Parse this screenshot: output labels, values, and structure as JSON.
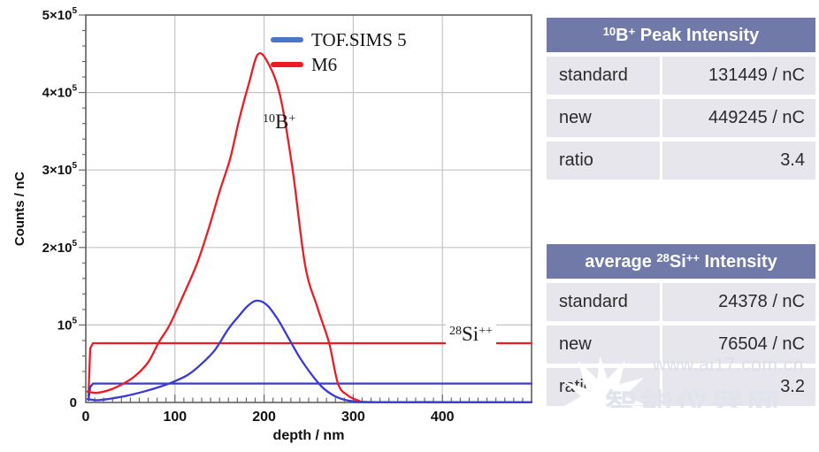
{
  "chart_data": {
    "type": "line",
    "title": "",
    "xlabel": "depth / nm",
    "ylabel": "Counts / nC",
    "xlim": [
      0,
      500
    ],
    "ylim": [
      0,
      500000
    ],
    "grid": true,
    "x_ticks": [
      0,
      100,
      200,
      300,
      400
    ],
    "x_minor_step": 10,
    "y_minor_step": 20000,
    "y_ticks": [
      {
        "value": 0,
        "base": "0",
        "exp": ""
      },
      {
        "value": 100000,
        "base": "10",
        "exp": "5"
      },
      {
        "value": 200000,
        "base": "2×10",
        "exp": "5"
      },
      {
        "value": 300000,
        "base": "3×10",
        "exp": "5"
      },
      {
        "value": 400000,
        "base": "4×10",
        "exp": "5"
      },
      {
        "value": 500000,
        "base": "5×10",
        "exp": "5"
      }
    ],
    "legend_position": "top-center-inside",
    "legend": [
      {
        "name": "TOF.SIMS 5",
        "color": "#4a76c8"
      },
      {
        "name": "M6",
        "color": "#ed1c24"
      }
    ],
    "annotations": [
      {
        "mass": "10",
        "element": "B",
        "charge": "+",
        "x_nm": 205,
        "y_counts": 355000
      },
      {
        "mass": "28",
        "element": "Si",
        "charge": "++",
        "x_nm": 408,
        "y_counts": 80000
      }
    ],
    "series": [
      {
        "name": "M6 28Si++ level",
        "color": "#ed1c24",
        "smooth": false,
        "points": [
          [
            3,
            8000
          ],
          [
            5,
            70000
          ],
          [
            8,
            76504
          ],
          [
            500,
            76504
          ]
        ]
      },
      {
        "name": "TOF.SIMS 5 28Si++ level",
        "color": "#3a3ad4",
        "smooth": false,
        "points": [
          [
            3,
            3000
          ],
          [
            5,
            20000
          ],
          [
            8,
            24378
          ],
          [
            500,
            24378
          ]
        ]
      },
      {
        "name": "M6 10B+ depth profile",
        "color": "#ed1c24",
        "smooth": true,
        "points": [
          [
            2,
            14000
          ],
          [
            12,
            12500
          ],
          [
            25,
            15500
          ],
          [
            40,
            23000
          ],
          [
            55,
            34000
          ],
          [
            70,
            52000
          ],
          [
            82,
            78000
          ],
          [
            94,
            100000
          ],
          [
            110,
            140000
          ],
          [
            125,
            180000
          ],
          [
            138,
            225000
          ],
          [
            150,
            272000
          ],
          [
            162,
            315000
          ],
          [
            172,
            365000
          ],
          [
            183,
            412000
          ],
          [
            193,
            449245
          ],
          [
            204,
            439000
          ],
          [
            218,
            396000
          ],
          [
            232,
            300000
          ],
          [
            246,
            177000
          ],
          [
            260,
            122000
          ],
          [
            273,
            76504
          ],
          [
            283,
            24000
          ],
          [
            294,
            9000
          ],
          [
            306,
            2500
          ],
          [
            318,
            600
          ],
          [
            400,
            500
          ],
          [
            500,
            500
          ]
        ]
      },
      {
        "name": "TOF.SIMS 5 10B+ depth profile",
        "color": "#3a3ad4",
        "smooth": true,
        "points": [
          [
            2,
            4500
          ],
          [
            12,
            2800
          ],
          [
            25,
            4500
          ],
          [
            45,
            8500
          ],
          [
            65,
            14000
          ],
          [
            85,
            21000
          ],
          [
            100,
            27500
          ],
          [
            115,
            36000
          ],
          [
            130,
            50000
          ],
          [
            145,
            68000
          ],
          [
            160,
            95000
          ],
          [
            172,
            112000
          ],
          [
            182,
            125000
          ],
          [
            192,
            131449
          ],
          [
            203,
            126000
          ],
          [
            215,
            108000
          ],
          [
            228,
            82000
          ],
          [
            240,
            58000
          ],
          [
            252,
            38000
          ],
          [
            265,
            20000
          ],
          [
            278,
            9000
          ],
          [
            290,
            3500
          ],
          [
            302,
            1200
          ],
          [
            320,
            400
          ],
          [
            500,
            400
          ]
        ]
      }
    ]
  },
  "tables": [
    {
      "title": {
        "prefix": "",
        "mass": "10",
        "element": "B",
        "charge": "+",
        "rest": " Peak Intensity"
      },
      "rows": [
        {
          "label": "standard",
          "value": "131449 / nC"
        },
        {
          "label": "new",
          "value": "449245 / nC"
        },
        {
          "label": "ratio",
          "value": "3.4"
        }
      ]
    },
    {
      "title": {
        "prefix": "average ",
        "mass": "28",
        "element": "Si",
        "charge": "++",
        "rest": " Intensity"
      },
      "rows": [
        {
          "label": "standard",
          "value": "24378 / nC"
        },
        {
          "label": "new",
          "value": "76504 / nC"
        },
        {
          "label": "ratio",
          "value": "3.2"
        }
      ]
    }
  ],
  "watermark": {
    "url": "www.ai17.com.cn",
    "text": "智能仪器网"
  }
}
